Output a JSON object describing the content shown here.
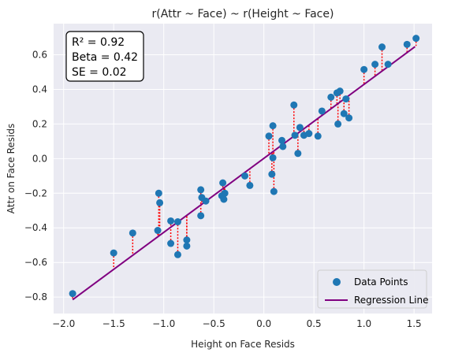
{
  "chart_data": {
    "type": "scatter",
    "title": "r(Attr ~ Face) ~ r(Height ~ Face)",
    "xlabel": "Height on Face Resids",
    "ylabel": "Attr on Face Resids",
    "xlim": [
      -2.1,
      1.68
    ],
    "ylim": [
      -0.895,
      0.78
    ],
    "xticks": [
      -2.0,
      -1.5,
      -1.0,
      -0.5,
      0.0,
      0.5,
      1.0,
      1.5
    ],
    "xtick_labels": [
      "−2.0",
      "−1.5",
      "−1.0",
      "−0.5",
      "0.0",
      "0.5",
      "1.0",
      "1.5"
    ],
    "yticks": [
      -0.8,
      -0.6,
      -0.4,
      -0.2,
      0.0,
      0.2,
      0.4,
      0.6
    ],
    "ytick_labels": [
      "−0.8",
      "−0.6",
      "−0.4",
      "−0.2",
      "0.0",
      "0.2",
      "0.4",
      "0.6"
    ],
    "grid": true,
    "legend_position": "bottom-right",
    "stats_lines": [
      "R² = 0.92",
      "Beta = 0.42",
      "SE = 0.02"
    ],
    "colors": {
      "points": "#1f77b4",
      "regression": "#800080",
      "residual": "#ff0000",
      "background": "#eaeaf2",
      "grid": "#ffffff"
    },
    "regression_line": {
      "name": "Regression Line",
      "x": [
        -1.91,
        1.51
      ],
      "y": [
        -0.815,
        0.647
      ]
    },
    "series": [
      {
        "name": "Data Points",
        "points": [
          [
            -1.91,
            -0.78
          ],
          [
            -1.5,
            -0.545
          ],
          [
            -1.31,
            -0.43
          ],
          [
            -1.06,
            -0.415
          ],
          [
            -1.05,
            -0.2
          ],
          [
            -1.04,
            -0.255
          ],
          [
            -0.93,
            -0.36
          ],
          [
            -0.93,
            -0.49
          ],
          [
            -0.86,
            -0.365
          ],
          [
            -0.86,
            -0.555
          ],
          [
            -0.77,
            -0.47
          ],
          [
            -0.77,
            -0.505
          ],
          [
            -0.63,
            -0.18
          ],
          [
            -0.63,
            -0.33
          ],
          [
            -0.62,
            -0.225
          ],
          [
            -0.58,
            -0.245
          ],
          [
            -0.42,
            -0.215
          ],
          [
            -0.41,
            -0.14
          ],
          [
            -0.4,
            -0.235
          ],
          [
            -0.39,
            -0.2
          ],
          [
            -0.19,
            -0.1
          ],
          [
            -0.14,
            -0.155
          ],
          [
            0.05,
            0.13
          ],
          [
            0.08,
            -0.09
          ],
          [
            0.09,
            0.19
          ],
          [
            0.09,
            0.005
          ],
          [
            0.1,
            -0.19
          ],
          [
            0.18,
            0.105
          ],
          [
            0.19,
            0.07
          ],
          [
            0.3,
            0.31
          ],
          [
            0.31,
            0.135
          ],
          [
            0.34,
            0.03
          ],
          [
            0.36,
            0.18
          ],
          [
            0.4,
            0.135
          ],
          [
            0.45,
            0.145
          ],
          [
            0.54,
            0.13
          ],
          [
            0.58,
            0.275
          ],
          [
            0.67,
            0.355
          ],
          [
            0.73,
            0.38
          ],
          [
            0.74,
            0.2
          ],
          [
            0.76,
            0.39
          ],
          [
            0.8,
            0.26
          ],
          [
            0.82,
            0.345
          ],
          [
            0.85,
            0.235
          ],
          [
            1.0,
            0.515
          ],
          [
            1.11,
            0.545
          ],
          [
            1.18,
            0.645
          ],
          [
            1.24,
            0.545
          ],
          [
            1.43,
            0.66
          ],
          [
            1.52,
            0.695
          ]
        ]
      }
    ]
  }
}
